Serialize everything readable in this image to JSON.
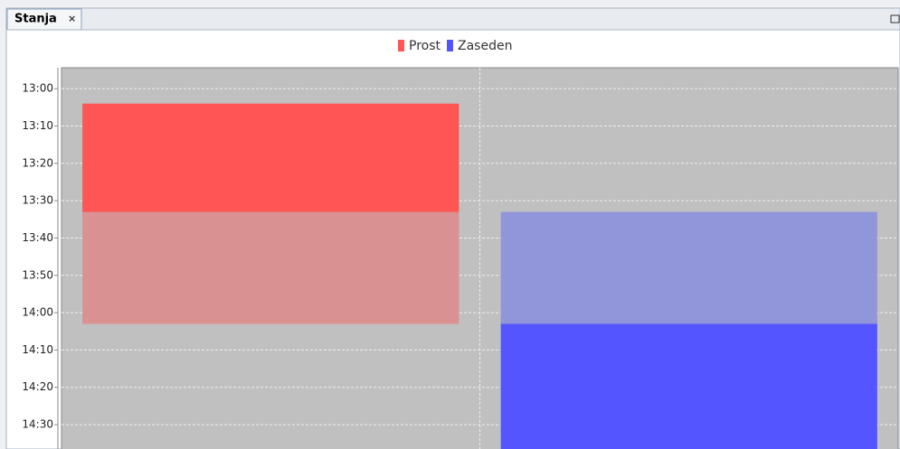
{
  "tab": {
    "title": "Stanja",
    "close": "×"
  },
  "chart_data": {
    "type": "gantt",
    "categories": [
      null,
      null
    ],
    "series": [
      {
        "name": "Prost",
        "color": "#ff5555",
        "light_color": "#d99191",
        "values": [
          [
            784,
            813
          ],
          null
        ],
        "light_values": [
          [
            813,
            843
          ],
          null
        ]
      },
      {
        "name": "Zaseden",
        "color": "#5555ff",
        "light_color": "#9195d9",
        "values": [
          null,
          [
            843,
            877
          ]
        ],
        "light_values": [
          null,
          [
            813,
            843
          ]
        ]
      }
    ],
    "ylim": [
      774.4,
      877
    ],
    "inverted": true,
    "yticks": [
      {
        "value": 780,
        "label": "13:00"
      },
      {
        "value": 790,
        "label": "13:10"
      },
      {
        "value": 800,
        "label": "13:20"
      },
      {
        "value": 810,
        "label": "13:30"
      },
      {
        "value": 820,
        "label": "13:40"
      },
      {
        "value": 830,
        "label": "13:50"
      },
      {
        "value": 840,
        "label": "14:00"
      },
      {
        "value": 850,
        "label": "14:10"
      },
      {
        "value": 860,
        "label": "14:20"
      },
      {
        "value": 870,
        "label": "14:30"
      }
    ],
    "grid": true,
    "legend": "top",
    "plot_color": "#c0c0c0"
  }
}
